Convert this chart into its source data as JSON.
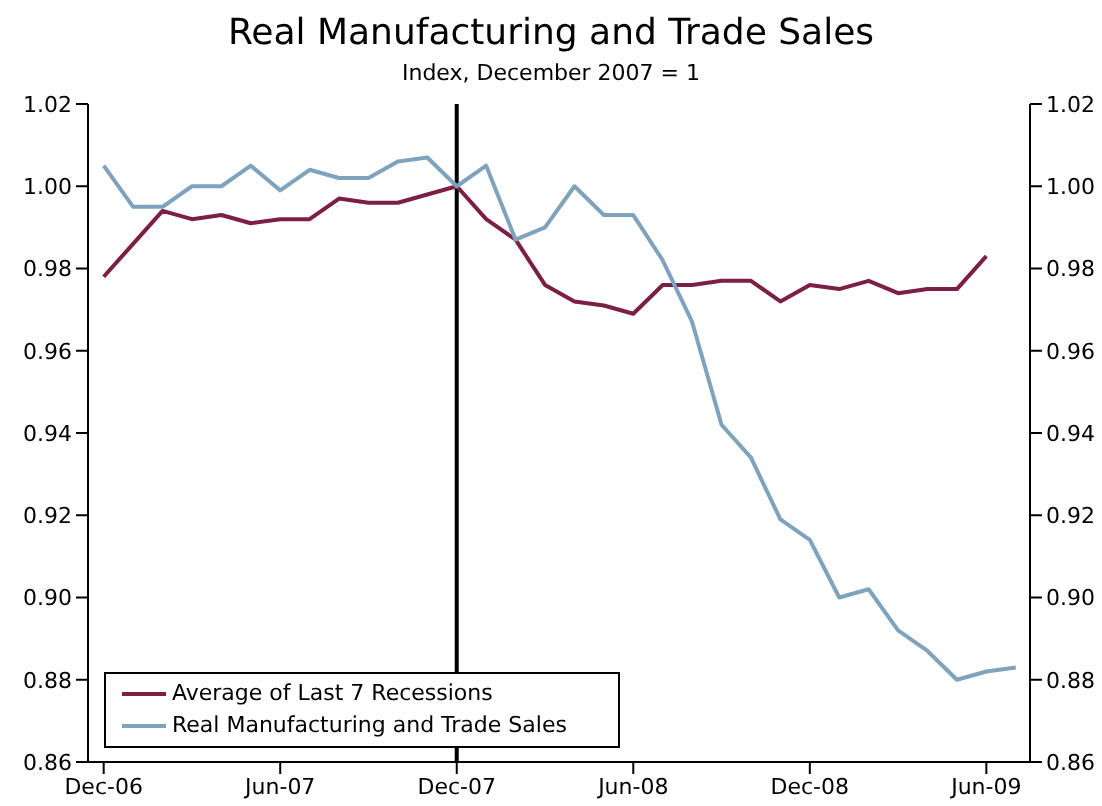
{
  "chart_data": {
    "type": "line",
    "title": "Real Manufacturing and Trade Sales",
    "subtitle": "Index, December 2007 = 1",
    "x": [
      "2006-12",
      "2007-01",
      "2007-02",
      "2007-03",
      "2007-04",
      "2007-05",
      "2007-06",
      "2007-07",
      "2007-08",
      "2007-09",
      "2007-10",
      "2007-11",
      "2007-12",
      "2008-01",
      "2008-02",
      "2008-03",
      "2008-04",
      "2008-05",
      "2008-06",
      "2008-07",
      "2008-08",
      "2008-09",
      "2008-10",
      "2008-11",
      "2008-12",
      "2009-01",
      "2009-02",
      "2009-03",
      "2009-04",
      "2009-05",
      "2009-06",
      "2009-07"
    ],
    "series": [
      {
        "name": "Average of Last 7 Recessions",
        "color": "#7b1f45",
        "values": [
          0.978,
          0.986,
          0.994,
          0.992,
          0.993,
          0.991,
          0.992,
          0.992,
          0.997,
          0.996,
          0.996,
          0.998,
          1.0,
          0.992,
          0.987,
          0.976,
          0.972,
          0.971,
          0.969,
          0.976,
          0.976,
          0.977,
          0.977,
          0.972,
          0.976,
          0.975,
          0.977,
          0.974,
          0.975,
          0.975,
          0.983,
          null
        ]
      },
      {
        "name": "Real Manufacturing and Trade Sales",
        "color": "#7fa3bd",
        "values": [
          1.005,
          0.995,
          0.995,
          1.0,
          1.0,
          1.005,
          0.999,
          1.004,
          1.002,
          1.002,
          1.006,
          1.007,
          1.0,
          1.005,
          0.987,
          0.99,
          1.0,
          0.993,
          0.993,
          0.982,
          0.967,
          0.942,
          0.934,
          0.919,
          0.914,
          0.9,
          0.902,
          0.892,
          0.887,
          0.88,
          0.882,
          0.883
        ]
      }
    ],
    "xlim": [
      "2006-11-15",
      "2009-07-16"
    ],
    "xticks": [
      {
        "value": "2006-12",
        "label": "Dec-06"
      },
      {
        "value": "2007-06",
        "label": "Jun-07"
      },
      {
        "value": "2007-12",
        "label": "Dec-07"
      },
      {
        "value": "2008-06",
        "label": "Jun-08"
      },
      {
        "value": "2008-12",
        "label": "Dec-08"
      },
      {
        "value": "2009-06",
        "label": "Jun-09"
      }
    ],
    "ylim": [
      0.86,
      1.02
    ],
    "yticks": [
      0.86,
      0.88,
      {
        "value": 0.9,
        "label": "0.90"
      },
      0.92,
      0.94,
      0.96,
      0.98,
      {
        "value": 1,
        "label": "1.00"
      },
      1.02
    ],
    "y2lim": [
      0.86,
      1.02
    ],
    "y2ticks": [
      0.86,
      0.88,
      {
        "value": 0.9,
        "label": "0.90"
      },
      0.92,
      0.94,
      0.96,
      0.98,
      {
        "value": 1,
        "label": "1.00"
      },
      1.02
    ],
    "ref_lines": [
      {
        "axis": "x",
        "value": "2007-12",
        "color": "#000000"
      }
    ],
    "grid": false,
    "legend": "bottom left",
    "marker": "none",
    "line_style": "solid"
  }
}
